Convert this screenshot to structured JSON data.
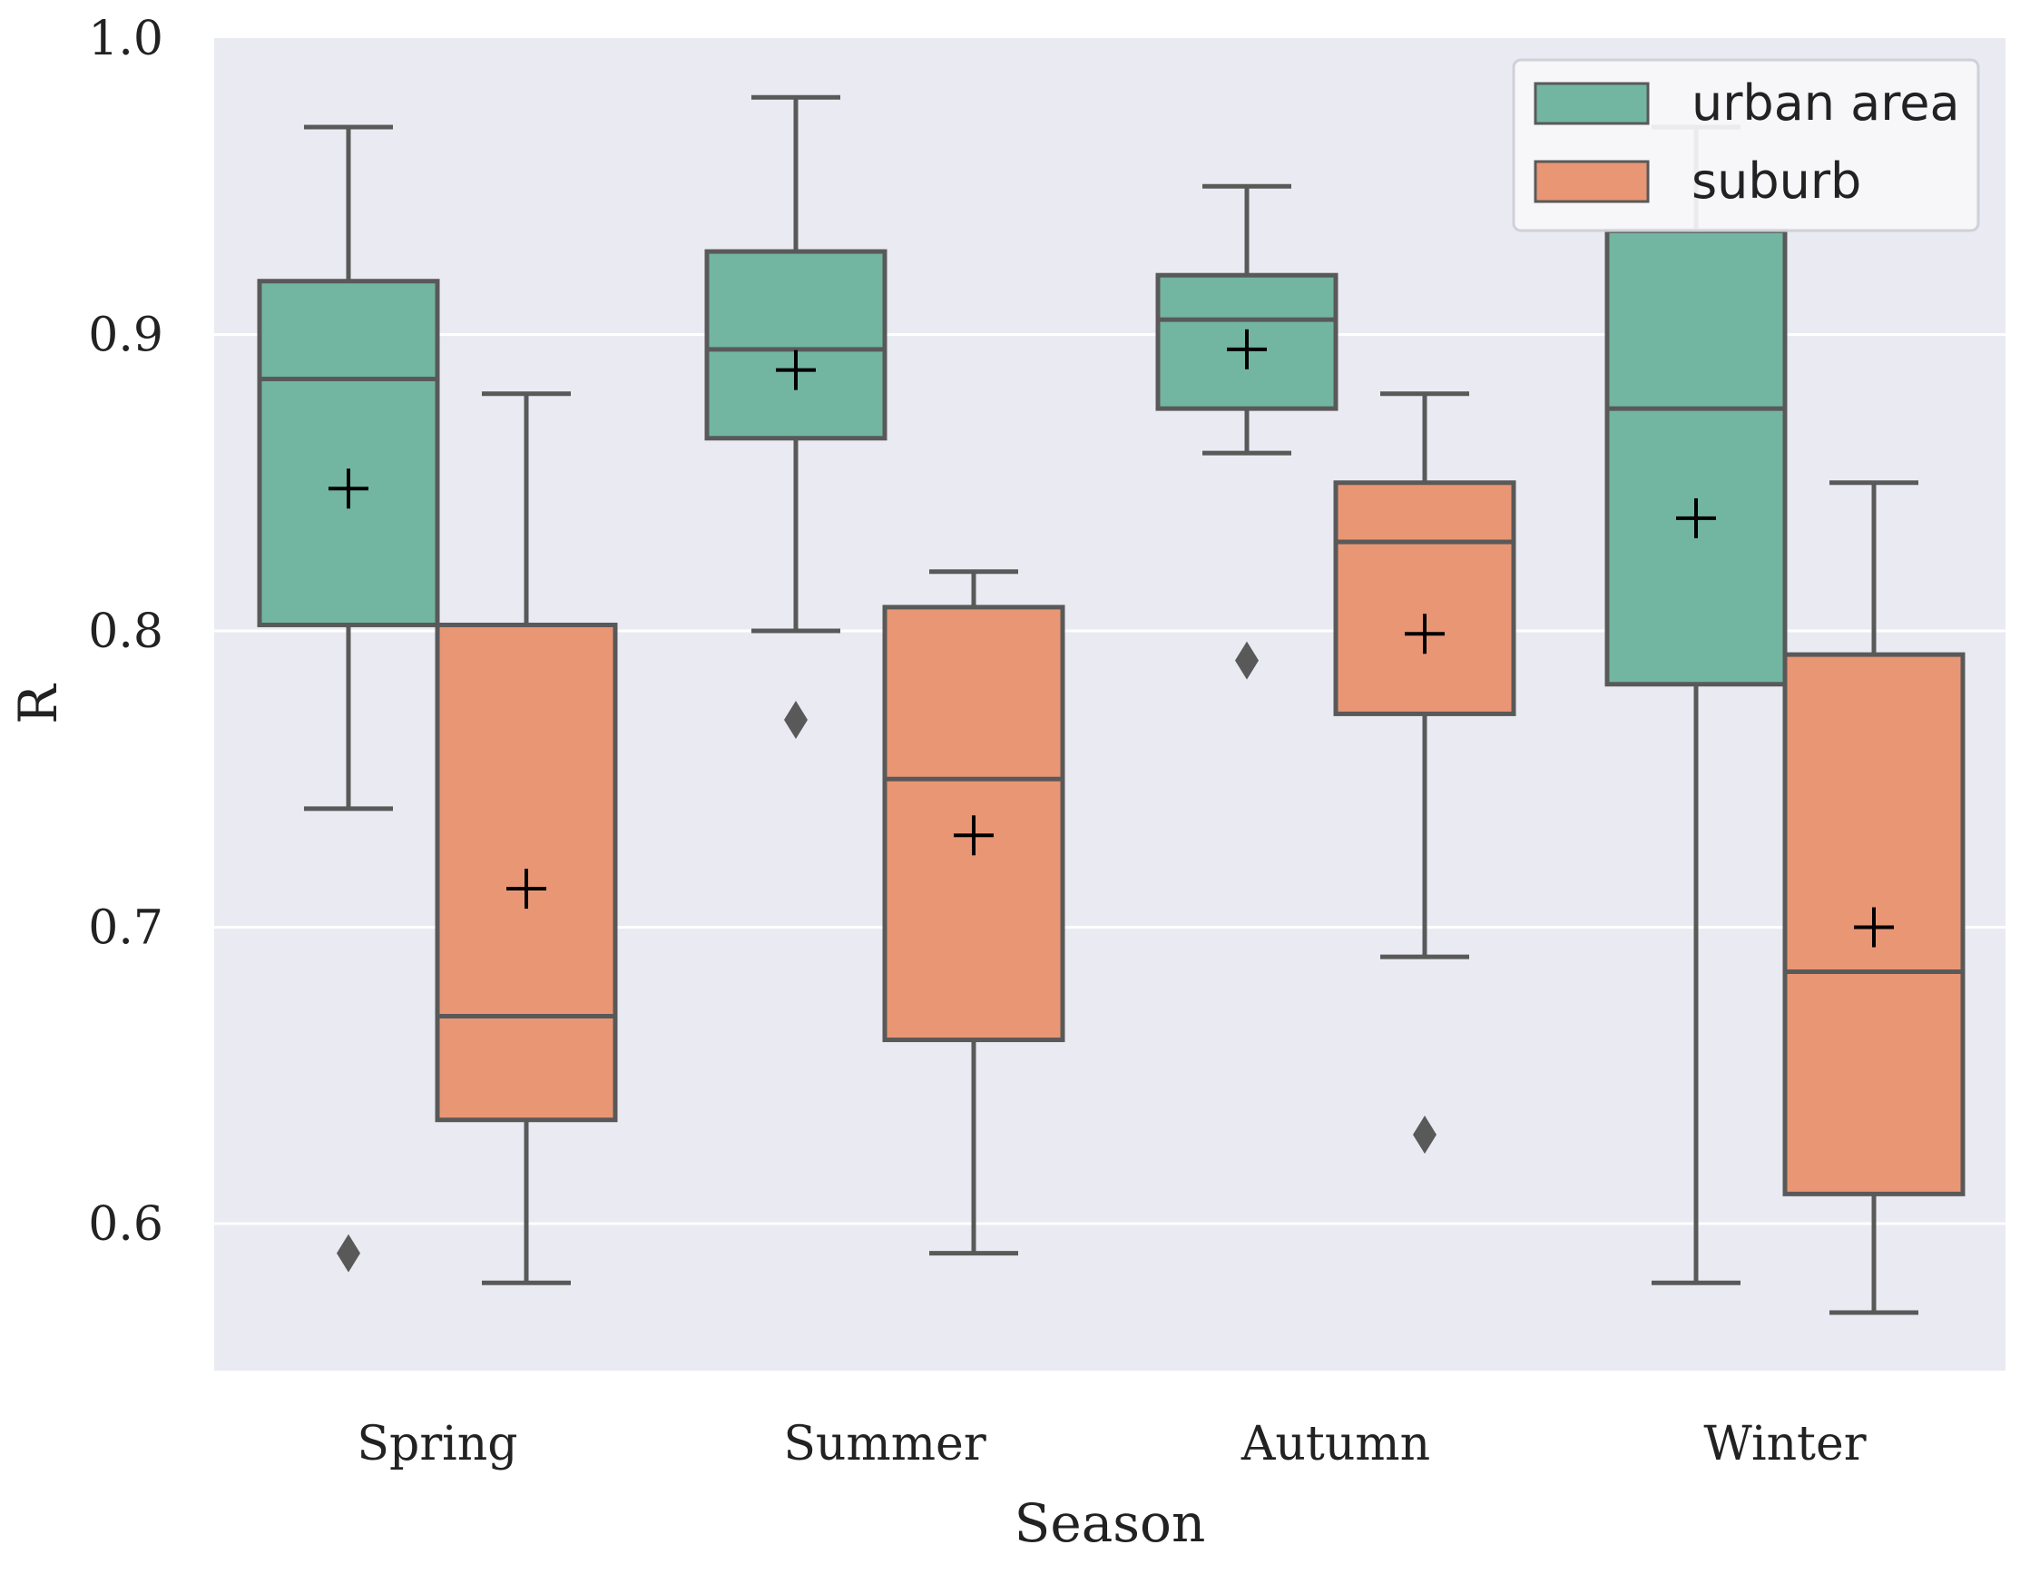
{
  "chart_data": {
    "type": "box",
    "xlabel": "Season",
    "ylabel": "R",
    "ylim": [
      0.55,
      1.0
    ],
    "yticks": [
      0.6,
      0.7,
      0.8,
      0.9,
      1.0
    ],
    "ytick_labels": [
      "0.6",
      "0.7",
      "0.8",
      "0.9",
      "1.0"
    ],
    "categories": [
      "Spring",
      "Summer",
      "Autumn",
      "Winter"
    ],
    "grid": true,
    "legend_position": "top-right",
    "mean_marker": "+",
    "outlier_marker": "diamond",
    "colors": {
      "background": "#eaeaf2",
      "grid": "#ffffff",
      "box_edge": "#595959",
      "mean": "#000000",
      "outlier": "#595959"
    },
    "series": [
      {
        "name": "urban area",
        "color": "#72b6a1",
        "boxes": [
          {
            "category": "Spring",
            "whisker_low": 0.74,
            "q1": 0.802,
            "median": 0.885,
            "q3": 0.918,
            "whisker_high": 0.97,
            "mean": 0.848,
            "outliers": [
              0.59
            ]
          },
          {
            "category": "Summer",
            "whisker_low": 0.8,
            "q1": 0.865,
            "median": 0.895,
            "q3": 0.928,
            "whisker_high": 0.98,
            "mean": 0.888,
            "outliers": [
              0.77
            ]
          },
          {
            "category": "Autumn",
            "whisker_low": 0.86,
            "q1": 0.875,
            "median": 0.905,
            "q3": 0.92,
            "whisker_high": 0.95,
            "mean": 0.895,
            "outliers": [
              0.79
            ]
          },
          {
            "category": "Winter",
            "whisker_low": 0.58,
            "q1": 0.782,
            "median": 0.875,
            "q3": 0.935,
            "whisker_high": 0.97,
            "mean": 0.838,
            "outliers": []
          }
        ]
      },
      {
        "name": "suburb",
        "color": "#e99675",
        "boxes": [
          {
            "category": "Spring",
            "whisker_low": 0.58,
            "q1": 0.635,
            "median": 0.67,
            "q3": 0.802,
            "whisker_high": 0.88,
            "mean": 0.713,
            "outliers": []
          },
          {
            "category": "Summer",
            "whisker_low": 0.59,
            "q1": 0.662,
            "median": 0.75,
            "q3": 0.808,
            "whisker_high": 0.82,
            "mean": 0.731,
            "outliers": []
          },
          {
            "category": "Autumn",
            "whisker_low": 0.69,
            "q1": 0.772,
            "median": 0.83,
            "q3": 0.85,
            "whisker_high": 0.88,
            "mean": 0.799,
            "outliers": [
              0.63
            ]
          },
          {
            "category": "Winter",
            "whisker_low": 0.57,
            "q1": 0.61,
            "median": 0.685,
            "q3": 0.792,
            "whisker_high": 0.85,
            "mean": 0.7,
            "outliers": []
          }
        ]
      }
    ]
  }
}
